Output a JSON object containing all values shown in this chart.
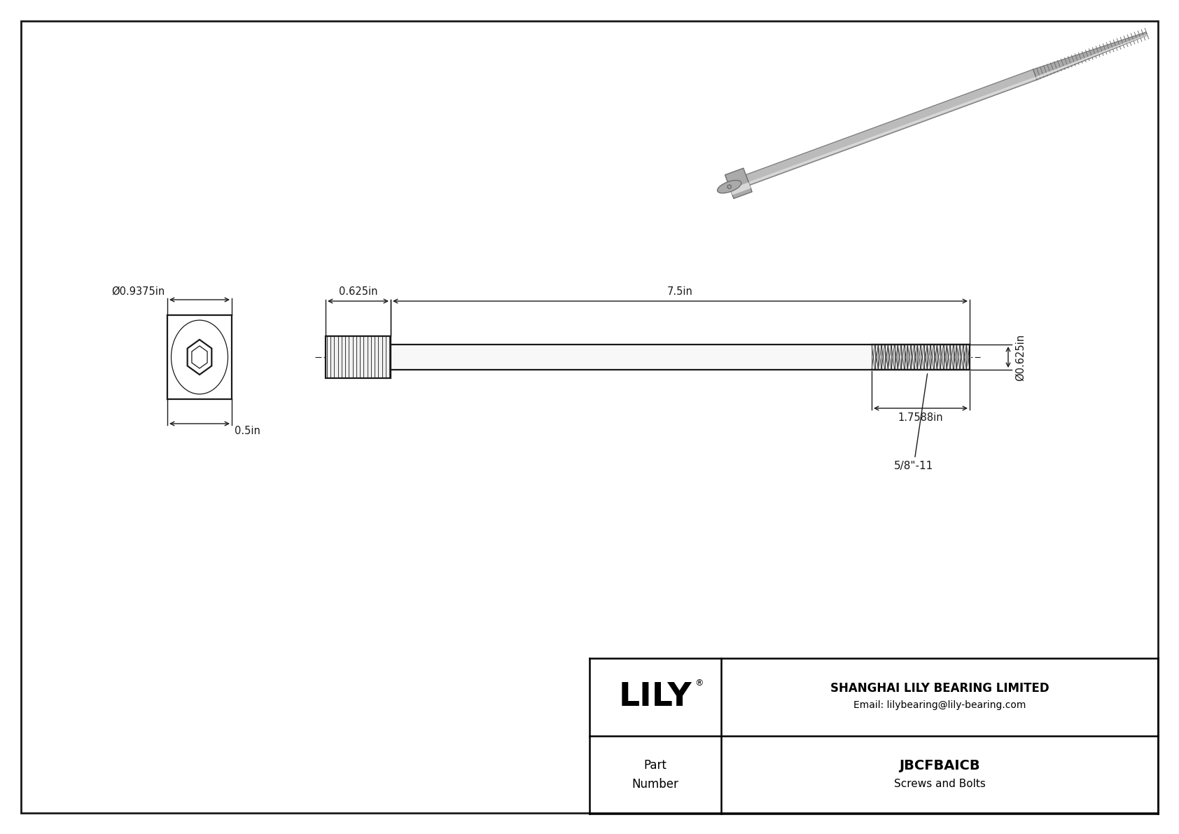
{
  "bg_color": "#ffffff",
  "line_color": "#1a1a1a",
  "title": "JBCFBAICB",
  "subtitle": "Screws and Bolts",
  "company": "SHANGHAI LILY BEARING LIMITED",
  "email": "Email: lilybearing@lily-bearing.com",
  "part_label": "Part\nNumber",
  "logo_text": "LILY",
  "logo_reg": "®",
  "dim_head_width": "0.625in",
  "dim_total_length": "7.5in",
  "dim_thread_length": "1.7588in",
  "dim_thread_label": "5/8\"-11",
  "dim_diameter": "Ø0.625in",
  "dim_front_diameter": "Ø0.9375in",
  "dim_head_height": "0.5in",
  "border_color": "#000000",
  "table_border": "#000000",
  "screw_gray": "#aaaaaa",
  "screw_light": "#d8d8d8",
  "screw_dark": "#707070",
  "screw_mid": "#bbbbbb"
}
